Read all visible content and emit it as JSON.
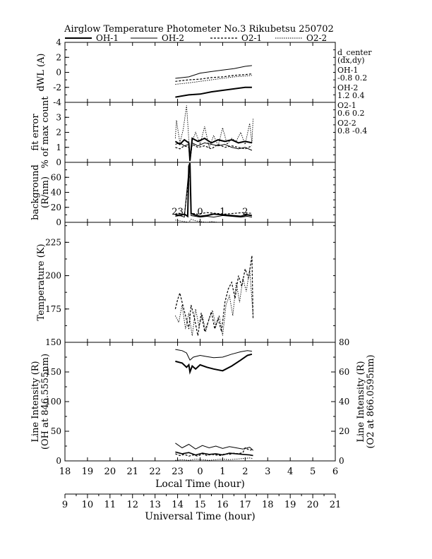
{
  "title": "Airglow Temperature Photometer No.3   Rikubetsu    250702",
  "legend": [
    {
      "name": "OH-1",
      "style": "solid-thick"
    },
    {
      "name": "OH-2",
      "style": "solid-thin"
    },
    {
      "name": "O2-1",
      "style": "dashed"
    },
    {
      "name": "O2-2",
      "style": "dotted"
    }
  ],
  "d_center": {
    "heading": "d_center",
    "subheading": "(dx,dy)",
    "entries": [
      {
        "name": "OH-1",
        "value": "-0.8  0.2"
      },
      {
        "name": "OH-2",
        "value": "1.2   0.4"
      },
      {
        "name": "O2-1",
        "value": "0.6   0.2"
      },
      {
        "name": "O2-2",
        "value": "0.8   -0.4"
      }
    ]
  },
  "chart_data": [
    {
      "type": "line",
      "ylabel": "dWL (A)",
      "ylim": [
        -4,
        4
      ],
      "yticks": [
        -4,
        -2,
        0,
        2,
        4
      ],
      "series": [
        {
          "name": "OH-1",
          "x": [
            13.9,
            14.5,
            15.0,
            15.5,
            16.0,
            16.5,
            17.0,
            17.3
          ],
          "y": [
            -3.3,
            -3.0,
            -2.9,
            -2.6,
            -2.4,
            -2.2,
            -2.0,
            -2.0
          ]
        },
        {
          "name": "OH-2",
          "x": [
            13.9,
            14.5,
            15.0,
            15.5,
            16.0,
            16.5,
            17.0,
            17.3
          ],
          "y": [
            -0.8,
            -0.6,
            -0.1,
            0.1,
            0.3,
            0.5,
            0.8,
            0.9
          ]
        },
        {
          "name": "O2-1",
          "x": [
            13.9,
            14.5,
            15.0,
            15.5,
            16.0,
            16.5,
            17.0,
            17.3
          ],
          "y": [
            -1.2,
            -1.0,
            -0.9,
            -0.7,
            -0.6,
            -0.4,
            -0.3,
            -0.2
          ]
        },
        {
          "name": "O2-2",
          "x": [
            13.9,
            14.5,
            15.0,
            15.5,
            16.0,
            16.5,
            17.0,
            17.3
          ],
          "y": [
            -1.6,
            -1.4,
            -1.2,
            -1.0,
            -0.8,
            -0.6,
            -0.5,
            -0.4
          ]
        }
      ]
    },
    {
      "type": "line",
      "ylabel": "fit error",
      "ylabel2": "% of max count",
      "ylim": [
        0,
        4
      ],
      "yticks": [
        0,
        1,
        2,
        3
      ],
      "series": [
        {
          "name": "OH-1",
          "x": [
            13.9,
            14.1,
            14.3,
            14.5,
            14.55,
            14.65,
            14.9,
            15.2,
            15.5,
            15.8,
            16.1,
            16.4,
            16.7,
            17.0,
            17.3
          ],
          "y": [
            1.4,
            1.2,
            1.5,
            1.3,
            0.1,
            1.6,
            1.4,
            1.6,
            1.3,
            1.5,
            1.4,
            1.5,
            1.3,
            1.4,
            1.3
          ]
        },
        {
          "name": "OH-2",
          "x": [
            13.9,
            14.1,
            14.3,
            14.5,
            14.55,
            14.65,
            14.9,
            15.2,
            15.5,
            15.8,
            16.1,
            16.4,
            16.7,
            17.0,
            17.3
          ],
          "y": [
            1.2,
            1.3,
            1.1,
            1.2,
            0.2,
            1.3,
            1.1,
            1.3,
            1.2,
            1.1,
            1.2,
            1.0,
            0.9,
            1.0,
            0.8
          ]
        },
        {
          "name": "O2-1",
          "x": [
            13.9,
            14.1,
            14.3,
            14.5,
            14.55,
            14.65,
            14.9,
            15.2,
            15.5,
            15.8,
            16.1,
            16.4,
            16.7,
            17.0,
            17.3
          ],
          "y": [
            1.0,
            0.9,
            1.1,
            1.0,
            0.1,
            1.2,
            1.0,
            1.1,
            0.9,
            1.2,
            1.0,
            1.1,
            1.0,
            0.9,
            1.1
          ]
        },
        {
          "name": "O2-2",
          "x": [
            13.9,
            13.95,
            14.1,
            14.25,
            14.4,
            14.5,
            14.55,
            14.65,
            14.8,
            15.0,
            15.2,
            15.4,
            15.6,
            15.8,
            16.0,
            16.2,
            16.4,
            16.6,
            16.8,
            17.0,
            17.2,
            17.3,
            17.35
          ],
          "y": [
            1.6,
            2.8,
            1.3,
            2.2,
            3.8,
            1.5,
            0.3,
            1.4,
            2.0,
            1.2,
            2.4,
            1.0,
            1.8,
            1.1,
            2.3,
            1.2,
            1.6,
            1.4,
            2.0,
            1.2,
            2.6,
            1.3,
            2.9
          ]
        }
      ]
    },
    {
      "type": "line",
      "ylabel": "background",
      "ylabel2": "(R/nm)",
      "ylim": [
        0,
        80
      ],
      "yticks": [
        0,
        20,
        40,
        60
      ],
      "series": [
        {
          "name": "OH-1",
          "x": [
            13.9,
            14.1,
            14.3,
            14.45,
            14.5,
            14.55,
            14.6,
            14.75,
            15.0,
            15.3,
            15.6,
            16.0,
            16.4,
            16.8,
            17.1,
            17.3
          ],
          "y": [
            10,
            9,
            11,
            8,
            75,
            79,
            12,
            10,
            8,
            9,
            11,
            10,
            9,
            8,
            10,
            9
          ]
        },
        {
          "name": "OH-2",
          "x": [
            13.9,
            14.1,
            14.3,
            14.5,
            14.55,
            14.6,
            14.8,
            15.0,
            15.3,
            15.6,
            16.0,
            16.4,
            16.8,
            17.1,
            17.3
          ],
          "y": [
            8,
            9,
            7,
            70,
            72,
            9,
            8,
            7,
            8,
            7,
            9,
            8,
            7,
            8,
            7
          ]
        },
        {
          "name": "O2-1",
          "x": [
            13.9,
            14.1,
            14.3,
            14.5,
            14.55,
            14.6,
            14.9,
            15.3,
            15.7,
            16.1,
            16.5,
            16.9,
            17.3
          ],
          "y": [
            11,
            12,
            10,
            60,
            62,
            12,
            11,
            13,
            12,
            11,
            12,
            13,
            12
          ]
        },
        {
          "name": "O2-2",
          "x": [
            13.9,
            14.1,
            14.3,
            14.5,
            14.6,
            14.8,
            15.0,
            15.3,
            15.5,
            15.8
          ],
          "y": [
            3,
            2,
            1,
            0,
            4,
            2,
            1,
            0,
            1,
            0
          ]
        }
      ]
    },
    {
      "type": "line",
      "ylabel": "Temperature (K)",
      "ylim": [
        150,
        240
      ],
      "yticks": [
        150,
        175,
        200,
        225
      ],
      "series": [
        {
          "name": "O2-1",
          "x": [
            13.9,
            14.0,
            14.1,
            14.2,
            14.35,
            14.5,
            14.6,
            14.75,
            14.9,
            15.05,
            15.2,
            15.35,
            15.5,
            15.65,
            15.8,
            15.95,
            16.1,
            16.25,
            16.4,
            16.55,
            16.7,
            16.85,
            17.0,
            17.15,
            17.3,
            17.35
          ],
          "y": [
            175,
            182,
            187,
            180,
            170,
            160,
            178,
            168,
            155,
            172,
            158,
            165,
            173,
            160,
            168,
            158,
            180,
            190,
            195,
            183,
            200,
            192,
            205,
            198,
            215,
            168
          ]
        },
        {
          "name": "O2-2",
          "x": [
            13.9,
            14.05,
            14.2,
            14.35,
            14.5,
            14.65,
            14.8,
            14.95,
            15.1,
            15.25,
            15.4,
            15.55,
            15.7,
            15.85,
            16.0,
            16.15,
            16.3,
            16.45,
            16.6,
            16.75,
            16.9,
            17.05,
            17.2,
            17.35
          ],
          "y": [
            170,
            165,
            178,
            160,
            172,
            155,
            175,
            162,
            170,
            158,
            168,
            174,
            162,
            170,
            155,
            178,
            185,
            170,
            195,
            180,
            198,
            188,
            205,
            170
          ]
        }
      ]
    },
    {
      "type": "line",
      "ylabel": "Line Intensity (R)",
      "ylabel2": "(OH at 846.5555nm)",
      "y2label": "Line Intensity (R)",
      "y2label2": "(O2 at 866.0595nm)",
      "ylim": [
        0,
        200
      ],
      "yticks": [
        0,
        50,
        100,
        150
      ],
      "y2lim": [
        0,
        80
      ],
      "y2ticks": [
        0,
        20,
        40,
        60,
        80
      ],
      "series": [
        {
          "name": "OH-1",
          "x": [
            13.9,
            14.2,
            14.4,
            14.5,
            14.55,
            14.65,
            14.8,
            15.0,
            15.3,
            15.6,
            16.0,
            16.4,
            16.8,
            17.1,
            17.3
          ],
          "y": [
            168,
            165,
            158,
            162,
            150,
            160,
            155,
            162,
            158,
            155,
            152,
            160,
            170,
            178,
            180
          ]
        },
        {
          "name": "OH-2",
          "x": [
            13.9,
            14.2,
            14.4,
            14.55,
            14.7,
            15.0,
            15.3,
            15.6,
            16.0,
            16.4,
            16.8,
            17.1,
            17.3
          ],
          "y": [
            188,
            186,
            182,
            170,
            175,
            178,
            176,
            174,
            175,
            180,
            184,
            186,
            185
          ]
        },
        {
          "name": "O2-1",
          "x": [
            13.9,
            14.1,
            14.3,
            14.5,
            14.7,
            14.9,
            15.1,
            15.3,
            15.5,
            15.7,
            15.9,
            16.1,
            16.3,
            16.5,
            16.7,
            16.9,
            17.0,
            17.1,
            17.2,
            17.3,
            17.35
          ],
          "y": [
            12,
            9,
            11,
            8,
            10,
            8,
            12,
            9,
            11,
            10,
            9,
            12,
            11,
            13,
            12,
            14,
            22,
            20,
            18,
            19,
            17
          ]
        },
        {
          "name": "O2-2",
          "x": [
            13.9,
            14.2,
            14.5,
            14.8,
            15.1,
            15.4,
            15.7,
            16.0,
            16.3,
            16.6,
            16.9,
            17.2,
            17.35
          ],
          "y": [
            1,
            2,
            1,
            3,
            2,
            1,
            2,
            3,
            2,
            3,
            4,
            5,
            4
          ]
        },
        {
          "name": "OH-1 (low)",
          "x": [
            13.9,
            14.2,
            14.5,
            14.8,
            15.1,
            15.4,
            15.7,
            16.0,
            16.3,
            16.6,
            16.9,
            17.2,
            17.35
          ],
          "y": [
            15,
            12,
            14,
            10,
            13,
            11,
            12,
            10,
            13,
            12,
            11,
            10,
            9
          ]
        },
        {
          "name": "OH-2 (low)",
          "x": [
            13.9,
            14.2,
            14.5,
            14.8,
            15.1,
            15.4,
            15.7,
            16.0,
            16.3,
            16.6,
            16.9,
            17.2,
            17.35
          ],
          "y": [
            30,
            22,
            28,
            20,
            26,
            22,
            25,
            21,
            24,
            22,
            20,
            23,
            18
          ]
        }
      ]
    }
  ],
  "xaxis_local": {
    "label": "Local Time (hour)",
    "ticks": [
      "18",
      "19",
      "20",
      "21",
      "22",
      "23",
      "0",
      "1",
      "2",
      "3",
      "4",
      "5",
      "6"
    ]
  },
  "xaxis_ut": {
    "label": "Universal Time (hour)",
    "ticks": [
      "9",
      "10",
      "11",
      "12",
      "13",
      "14",
      "15",
      "16",
      "17",
      "18",
      "19",
      "20",
      "21"
    ]
  },
  "overlay_ticks": [
    "23",
    "0",
    "1",
    "2"
  ]
}
